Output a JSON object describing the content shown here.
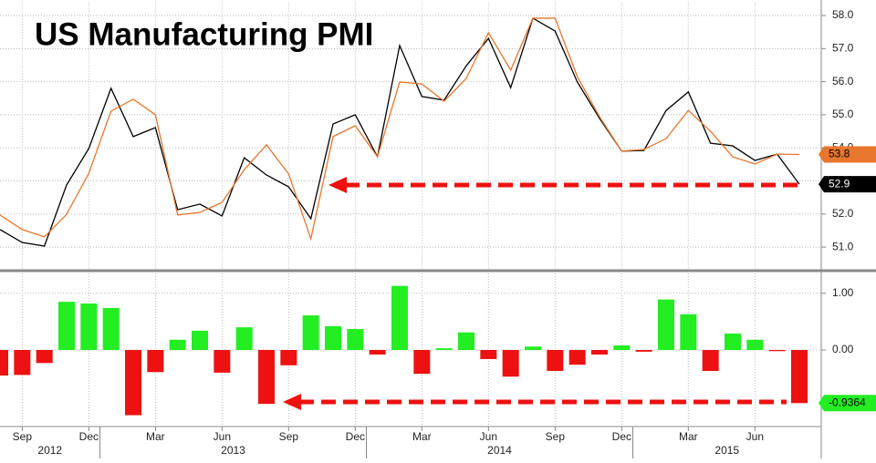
{
  "chart_data": [
    {
      "type": "line",
      "title": "US Manufacturing PMI",
      "series": [
        {
          "color": "#000000",
          "values": [
            51.53,
            51.14,
            51.03,
            52.88,
            53.98,
            55.8,
            54.34,
            54.61,
            52.13,
            52.3,
            51.94,
            53.7,
            53.18,
            52.82,
            51.86,
            54.72,
            55.0,
            53.73,
            57.09,
            55.55,
            55.44,
            56.48,
            57.31,
            55.82,
            57.92,
            57.53,
            55.99,
            54.89,
            53.9,
            53.92,
            55.13,
            55.69,
            54.14,
            54.06,
            53.62,
            53.81,
            52.9
          ]
        },
        {
          "color": "#e8762c",
          "values": [
            51.97,
            51.53,
            51.31,
            51.99,
            53.23,
            55.11,
            55.47,
            55.0,
            51.97,
            52.05,
            52.35,
            53.34,
            54.09,
            53.21,
            51.25,
            54.34,
            54.67,
            53.73,
            55.99,
            55.93,
            55.41,
            56.1,
            57.48,
            56.35,
            57.92,
            57.92,
            56.15,
            54.94,
            53.9,
            53.95,
            54.28,
            55.13,
            54.5,
            53.73,
            53.51,
            53.81,
            53.8
          ]
        }
      ],
      "ylim": [
        50.3,
        58.4
      ],
      "yticks": [
        {
          "value": 51,
          "label": "51.0"
        },
        {
          "value": 52,
          "label": "52.0"
        },
        {
          "value": 53,
          "label": "53.0"
        },
        {
          "value": 54,
          "label": "54.0"
        },
        {
          "value": 55,
          "label": "55.0"
        },
        {
          "value": 56,
          "label": "56.0"
        },
        {
          "value": 57,
          "label": "57.0"
        },
        {
          "value": 58,
          "label": "58.0"
        }
      ],
      "grid": true
    },
    {
      "type": "bar",
      "categories": [
        null,
        "Sep",
        null,
        null,
        "Dec",
        null,
        null,
        "Mar",
        null,
        null,
        "Jun",
        null,
        null,
        "Sep",
        null,
        null,
        "Dec",
        null,
        null,
        "Mar",
        null,
        null,
        "Jun",
        null,
        null,
        "Sep",
        null,
        null,
        "Dec",
        null,
        null,
        "Mar",
        null,
        null,
        "Jun",
        null,
        null
      ],
      "years": [
        {
          "name": "2012",
          "first": 0
        },
        {
          "name": "2013",
          "first": 5
        },
        {
          "name": "2014",
          "first": 17
        },
        {
          "name": "2015",
          "first": 29
        }
      ],
      "values": [
        -0.45,
        -0.44,
        -0.23,
        0.85,
        0.82,
        0.74,
        -1.15,
        -0.39,
        0.18,
        0.34,
        -0.4,
        0.4,
        -0.95,
        -0.27,
        0.61,
        0.42,
        0.37,
        -0.08,
        1.13,
        -0.42,
        0.03,
        0.31,
        -0.16,
        -0.47,
        0.06,
        -0.37,
        -0.26,
        -0.08,
        0.08,
        -0.03,
        0.89,
        0.63,
        -0.37,
        0.29,
        0.18,
        -0.02,
        -0.9364
      ],
      "positive_color": "#22ee22",
      "negative_color": "#ee1111",
      "ylim": [
        -1.35,
        1.35
      ],
      "yticks": [
        {
          "value": 1,
          "label": "1.00"
        },
        {
          "value": 0,
          "label": "0.00"
        }
      ],
      "grid": true
    }
  ]
}
